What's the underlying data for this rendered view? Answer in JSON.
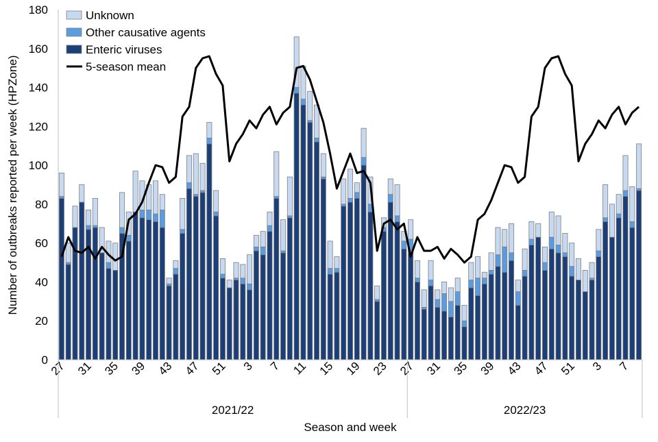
{
  "chart_data": {
    "type": "bar",
    "stacked": true,
    "title": "",
    "xlabel": "Season and week",
    "ylabel": "Number of outbreaks reported per week (HPZone)",
    "ylim": [
      0,
      180
    ],
    "y_ticks": [
      "0",
      "20",
      "40",
      "60",
      "80",
      "100",
      "120",
      "140",
      "160",
      "180"
    ],
    "grid": false,
    "legend_position": "top-left",
    "legend": [
      "Unknown",
      "Other causative agents",
      "Enteric viruses",
      "5-season mean"
    ],
    "colors": {
      "unknown": "#c6d9f0",
      "other": "#5b9bdf",
      "enteric": "#1c3f78",
      "mean": "#000000",
      "outline": "#7f7f7f"
    },
    "seasons": [
      {
        "label": "2021/22",
        "weeks": [
          27,
          28,
          29,
          30,
          31,
          32,
          33,
          34,
          35,
          36,
          37,
          38,
          39,
          40,
          41,
          42,
          43,
          44,
          45,
          46,
          47,
          48,
          49,
          50,
          51,
          52,
          1,
          2,
          3,
          4,
          5,
          6,
          7,
          8,
          9,
          10,
          11,
          12,
          13,
          14,
          15,
          16,
          17,
          18,
          19,
          20,
          21,
          22,
          23,
          24,
          25,
          26
        ]
      },
      {
        "label": "2022/23",
        "weeks": [
          27,
          28,
          29,
          30,
          31,
          32,
          33,
          34,
          35,
          36,
          37,
          38,
          39,
          40,
          41,
          42,
          43,
          44,
          45,
          46,
          47,
          48,
          49,
          50,
          51,
          52,
          1,
          2,
          3,
          4,
          5,
          6,
          7,
          8,
          9
        ]
      }
    ],
    "x_tick_labels": [
      "27",
      "31",
      "35",
      "39",
      "43",
      "47",
      "51",
      "3",
      "7",
      "11",
      "15",
      "19",
      "23",
      "27",
      "31",
      "35",
      "39",
      "43",
      "47",
      "51",
      "3",
      "7"
    ],
    "series": [
      {
        "name": "Enteric viruses",
        "values": [
          83,
          49,
          68,
          81,
          67,
          68,
          55,
          47,
          46,
          65,
          61,
          76,
          73,
          72,
          71,
          68,
          38,
          44,
          65,
          88,
          84,
          86,
          111,
          74,
          42,
          37,
          41,
          39,
          36,
          56,
          54,
          66,
          83,
          55,
          73,
          137,
          131,
          122,
          112,
          93,
          44,
          45,
          79,
          81,
          83,
          100,
          76,
          30,
          66,
          81,
          71,
          57,
          55,
          40,
          26,
          38,
          27,
          25,
          22,
          28,
          17,
          37,
          33,
          39,
          44,
          48,
          45,
          51,
          28,
          43,
          59,
          63,
          46,
          57,
          55,
          53,
          43,
          41,
          35,
          41,
          53,
          71,
          63,
          73,
          84,
          68,
          87
        ]
      },
      {
        "name": "Other causative agents",
        "values": [
          1,
          1,
          0,
          0,
          2,
          1,
          0,
          3,
          0,
          3,
          3,
          0,
          4,
          5,
          4,
          9,
          1,
          3,
          2,
          3,
          1,
          1,
          3,
          2,
          2,
          0,
          1,
          3,
          3,
          2,
          4,
          3,
          1,
          1,
          1,
          3,
          3,
          1,
          2,
          1,
          3,
          2,
          1,
          2,
          3,
          4,
          4,
          1,
          2,
          4,
          3,
          4,
          7,
          2,
          1,
          3,
          4,
          9,
          8,
          7,
          3,
          4,
          9,
          3,
          2,
          6,
          13,
          4,
          7,
          3,
          3,
          0,
          4,
          6,
          4,
          2,
          5,
          0,
          0,
          1,
          3,
          2,
          0,
          2,
          3,
          3,
          1
        ]
      },
      {
        "name": "Unknown",
        "values": [
          12,
          10,
          11,
          9,
          8,
          14,
          13,
          11,
          14,
          18,
          12,
          21,
          15,
          13,
          17,
          8,
          3,
          4,
          16,
          14,
          21,
          14,
          8,
          11,
          8,
          4,
          8,
          7,
          15,
          6,
          8,
          7,
          23,
          16,
          20,
          26,
          17,
          15,
          17,
          12,
          14,
          6,
          13,
          15,
          5,
          15,
          14,
          7,
          5,
          8,
          16,
          5,
          10,
          9,
          9,
          10,
          5,
          6,
          7,
          7,
          8,
          9,
          11,
          3,
          9,
          14,
          9,
          15,
          6,
          11,
          9,
          7,
          8,
          13,
          15,
          10,
          12,
          11,
          11,
          8,
          11,
          17,
          17,
          10,
          18,
          18,
          23
        ]
      },
      {
        "name": "5-season mean",
        "type": "line",
        "values": [
          53,
          63,
          56,
          55,
          58,
          52,
          58,
          54,
          51,
          53,
          72,
          75,
          81,
          91,
          100,
          99,
          91,
          94,
          125,
          130,
          150,
          155,
          156,
          147,
          141,
          102,
          111,
          116,
          123,
          119,
          126,
          130,
          121,
          127,
          130,
          150,
          151,
          144,
          133,
          122,
          106,
          88,
          97,
          106,
          96,
          97,
          91,
          56,
          70,
          72,
          67,
          70,
          53,
          63,
          56,
          56,
          58,
          52,
          57,
          54,
          50,
          53,
          72,
          75,
          82,
          91,
          100,
          99,
          91,
          94,
          125,
          130,
          150,
          155,
          156,
          147,
          141,
          102,
          111,
          116,
          123,
          119,
          126,
          130,
          121,
          127,
          130
        ]
      }
    ]
  }
}
